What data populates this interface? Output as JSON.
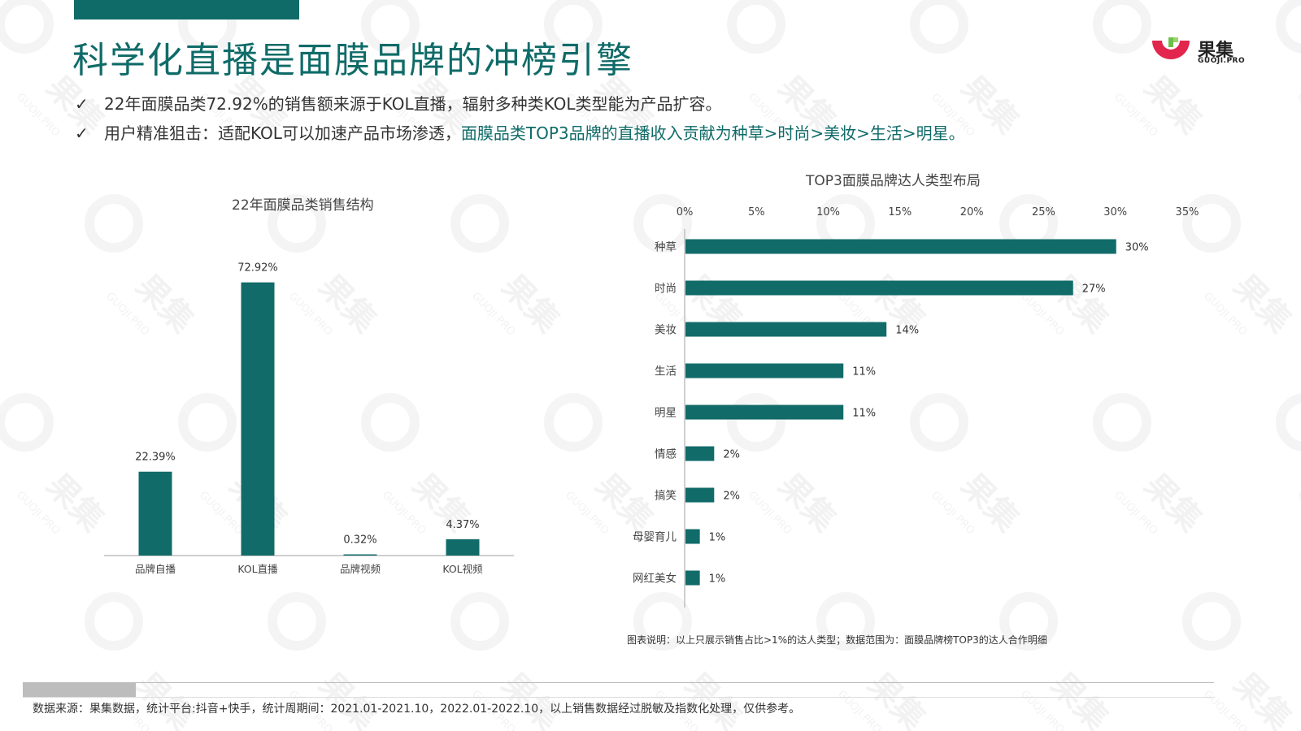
{
  "title": "科学化直播是面膜品牌的冲榜引擎",
  "logo": {
    "brand": "果集",
    "sub": "GUOJI.PRO"
  },
  "bullets": [
    {
      "check": "✓",
      "text": "22年面膜品类72.92%的销售额来源于KOL直播，辐射多种类KOL类型能为产品扩容。",
      "highlight": ""
    },
    {
      "check": "✓",
      "text": "用户精准狙击：适配KOL可以加速产品市场渗透，",
      "highlight": "面膜品类TOP3品牌的直播收入贡献为种草>时尚>美妆>生活>明星。"
    }
  ],
  "colors": {
    "accent": "#0f6b68",
    "bar": "#116b69"
  },
  "chart_data": [
    {
      "type": "bar",
      "title": "22年面膜品类销售结构",
      "categories": [
        "品牌自播",
        "KOL直播",
        "品牌视频",
        "KOL视频"
      ],
      "values": [
        22.39,
        72.92,
        0.32,
        4.37
      ],
      "labels": [
        "22.39%",
        "72.92%",
        "0.32%",
        "4.37%"
      ],
      "ylim": [
        0,
        80
      ],
      "grid": false,
      "legend": "none"
    },
    {
      "type": "bar",
      "orientation": "horizontal",
      "title": "TOP3面膜品牌达人类型布局",
      "categories": [
        "种草",
        "时尚",
        "美妆",
        "生活",
        "明星",
        "情感",
        "搞笑",
        "母婴育儿",
        "网红美女"
      ],
      "values": [
        30,
        27,
        14,
        11,
        11,
        2,
        2,
        1,
        1
      ],
      "labels": [
        "30%",
        "27%",
        "14%",
        "11%",
        "11%",
        "2%",
        "2%",
        "1%",
        "1%"
      ],
      "xticks": [
        "0%",
        "5%",
        "10%",
        "15%",
        "20%",
        "25%",
        "30%",
        "35%"
      ],
      "xlim": [
        0,
        35
      ],
      "grid": false,
      "legend": "none",
      "note": "图表说明：以上只展示销售占比>1%的达人类型；数据范围为：面膜品牌榜TOP3的达人合作明细"
    }
  ],
  "source": "数据来源：果集数据，统计平台:抖音+快手，统计周期间：2021.01-2021.10，2022.01-2022.10，以上销售数据经过脱敏及指数化处理，仅供参考。",
  "watermark": {
    "text": "果集",
    "sub": "GUOJI.PRO"
  }
}
